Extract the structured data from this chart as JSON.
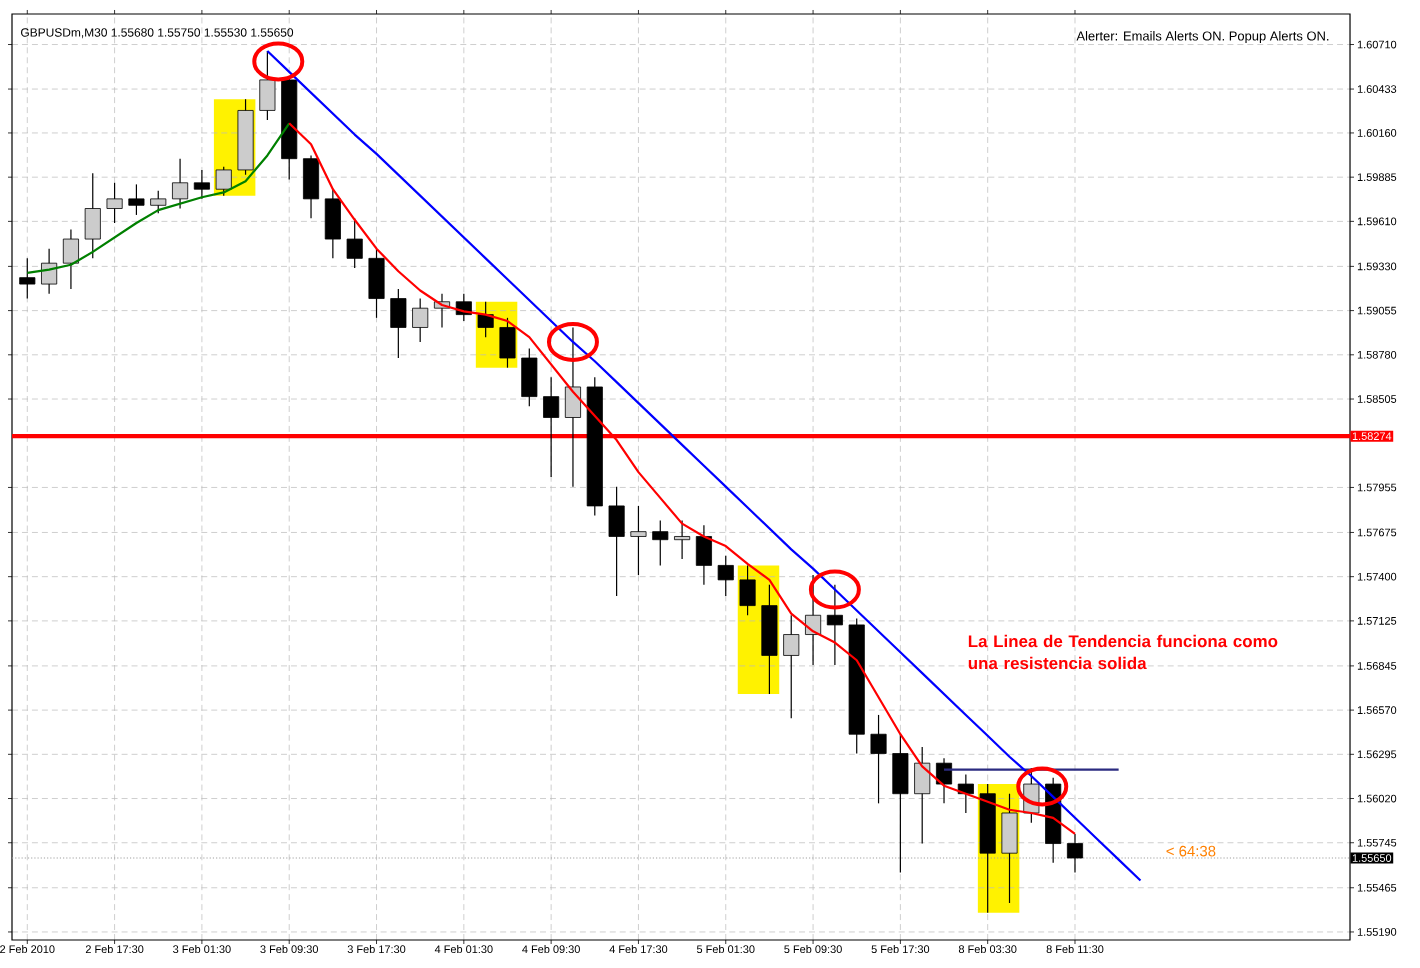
{
  "chart_data": {
    "type": "candlestick",
    "title": "GBPUSDm,M30  1.55680 1.55750 1.55530 1.55650",
    "annotations": [
      "Alerter:  Emails Alerts ON.  Popup Alerts ON.",
      "La Linea de Tendencia funciona como una resistencia solida",
      "< 64:38"
    ],
    "categories": [
      "2 Feb 2010",
      null,
      null,
      null,
      "2 Feb 17:30",
      null,
      null,
      null,
      "3 Feb 01:30",
      null,
      null,
      null,
      "3 Feb 09:30",
      null,
      null,
      null,
      "3 Feb 17:30",
      null,
      null,
      null,
      "4 Feb 01:30",
      null,
      null,
      null,
      "4 Feb 09:30",
      null,
      null,
      null,
      "4 Feb 17:30",
      null,
      null,
      null,
      "5 Feb 01:30",
      null,
      null,
      null,
      "5 Feb 09:30",
      null,
      null,
      null,
      "5 Feb 17:30",
      null,
      null,
      null,
      "8 Feb 03:30",
      null,
      null,
      null,
      "8 Feb 11:30",
      null,
      null,
      null,
      null,
      null,
      null,
      null,
      null,
      null,
      null,
      null,
      null
    ],
    "ohlc": [
      [
        1.5926,
        1.5938,
        1.5913,
        1.5922
      ],
      [
        1.5922,
        1.5944,
        1.5916,
        1.5935
      ],
      [
        1.5935,
        1.5956,
        1.5919,
        1.595
      ],
      [
        1.595,
        1.5991,
        1.5938,
        1.5969
      ],
      [
        1.5969,
        1.5985,
        1.596,
        1.5975
      ],
      [
        1.5975,
        1.5984,
        1.5965,
        1.5971
      ],
      [
        1.5971,
        1.598,
        1.5966,
        1.5975
      ],
      [
        1.5975,
        1.6,
        1.5969,
        1.5985
      ],
      [
        1.5985,
        1.5993,
        1.5975,
        1.5981
      ],
      [
        1.5981,
        1.5995,
        1.5977,
        1.5993
      ],
      [
        1.5993,
        1.6037,
        1.599,
        1.603
      ],
      [
        1.603,
        1.6067,
        1.6024,
        1.6049
      ],
      [
        1.6049,
        1.6051,
        1.5987,
        1.6
      ],
      [
        1.6,
        1.6002,
        1.5963,
        1.5975
      ],
      [
        1.5975,
        1.5981,
        1.5938,
        1.595
      ],
      [
        1.595,
        1.5963,
        1.5932,
        1.5938
      ],
      [
        1.5938,
        1.5944,
        1.5901,
        1.5913
      ],
      [
        1.5913,
        1.5919,
        1.5876,
        1.5895
      ],
      [
        1.5895,
        1.5913,
        1.5886,
        1.5907
      ],
      [
        1.5907,
        1.5916,
        1.5895,
        1.5911
      ],
      [
        1.5911,
        1.5916,
        1.5899,
        1.5903
      ],
      [
        1.5903,
        1.5911,
        1.5889,
        1.5895
      ],
      [
        1.5895,
        1.5901,
        1.587,
        1.5876
      ],
      [
        1.5876,
        1.5882,
        1.5846,
        1.5852
      ],
      [
        1.5852,
        1.5864,
        1.5802,
        1.5839
      ],
      [
        1.5839,
        1.5895,
        1.5796,
        1.5858
      ],
      [
        1.5858,
        1.5864,
        1.5778,
        1.5784
      ],
      [
        1.5784,
        1.5796,
        1.5728,
        1.5765
      ],
      [
        1.5765,
        1.5784,
        1.5741,
        1.5768
      ],
      [
        1.5768,
        1.5775,
        1.5747,
        1.5763
      ],
      [
        1.5763,
        1.5775,
        1.5751,
        1.5765
      ],
      [
        1.5765,
        1.5772,
        1.5735,
        1.5747
      ],
      [
        1.5747,
        1.5753,
        1.5728,
        1.5738
      ],
      [
        1.5738,
        1.5747,
        1.5716,
        1.5722
      ],
      [
        1.5722,
        1.5735,
        1.5667,
        1.5691
      ],
      [
        1.5691,
        1.5716,
        1.5652,
        1.5704
      ],
      [
        1.5704,
        1.5741,
        1.5685,
        1.5716
      ],
      [
        1.5716,
        1.5735,
        1.5685,
        1.571
      ],
      [
        1.571,
        1.5714,
        1.563,
        1.5642
      ],
      [
        1.5642,
        1.5654,
        1.5599,
        1.563
      ],
      [
        1.563,
        1.5642,
        1.5556,
        1.5605
      ],
      [
        1.5605,
        1.5634,
        1.5574,
        1.5624
      ],
      [
        1.5624,
        1.5627,
        1.5599,
        1.5611
      ],
      [
        1.5611,
        1.5617,
        1.5593,
        1.5605
      ],
      [
        1.5605,
        1.5611,
        1.5531,
        1.5568
      ],
      [
        1.5568,
        1.5605,
        1.5537,
        1.5593
      ],
      [
        1.5593,
        1.5621,
        1.5587,
        1.5611
      ],
      [
        1.5611,
        1.5615,
        1.5562,
        1.5574
      ],
      [
        1.5574,
        1.558,
        1.5556,
        1.5565
      ],
      null,
      null,
      null,
      null,
      null,
      null,
      null,
      null,
      null,
      null,
      null,
      null
    ],
    "series": [
      {
        "type": "line",
        "color": "#008000",
        "values": [
          1.5929,
          1.5931,
          1.5934,
          1.5942,
          1.5951,
          1.596,
          1.5968,
          1.5972,
          1.5976,
          1.5979,
          1.5986,
          1.6002,
          1.6022,
          null,
          null,
          null,
          null,
          null,
          null,
          null,
          null,
          null,
          null,
          null,
          null,
          null,
          null,
          null,
          null,
          null,
          null,
          null,
          null,
          null,
          null,
          null,
          null,
          null,
          null,
          null,
          null,
          null,
          null,
          null,
          null,
          null,
          null,
          null,
          null,
          null,
          null,
          null,
          null,
          null,
          null,
          null,
          null,
          null,
          null,
          null,
          null
        ]
      },
      {
        "type": "line",
        "color": "#ff0000",
        "values": [
          null,
          null,
          null,
          null,
          null,
          null,
          null,
          null,
          null,
          null,
          null,
          null,
          1.6022,
          1.6009,
          1.5981,
          1.5962,
          1.5944,
          1.593,
          1.5918,
          1.5909,
          1.5905,
          1.5903,
          1.5899,
          1.5889,
          1.5872,
          1.5855,
          1.584,
          1.5825,
          1.5805,
          1.5789,
          1.5773,
          1.5765,
          1.5759,
          1.5748,
          1.5738,
          1.5717,
          1.5706,
          1.5699,
          1.5688,
          1.5665,
          1.5642,
          1.5622,
          1.561,
          1.5605,
          1.56,
          1.5595,
          1.5593,
          1.559,
          1.558,
          null,
          null,
          null,
          null,
          null,
          null,
          null,
          null,
          null,
          null,
          null,
          null
        ]
      },
      {
        "type": "line",
        "color": "#2b2b80",
        "values": [
          null,
          null,
          null,
          null,
          null,
          null,
          null,
          null,
          null,
          null,
          null,
          null,
          null,
          null,
          null,
          null,
          null,
          null,
          null,
          null,
          null,
          null,
          null,
          null,
          null,
          null,
          null,
          null,
          null,
          null,
          null,
          null,
          null,
          null,
          null,
          null,
          null,
          null,
          null,
          null,
          null,
          null,
          1.562,
          1.562,
          1.562,
          1.562,
          1.562,
          1.562,
          1.562,
          1.562,
          1.562,
          null,
          null,
          null,
          null,
          null,
          null,
          null,
          null,
          null,
          null
        ]
      },
      {
        "type": "line",
        "color": "#0000ff",
        "values": [
          null,
          null,
          null,
          null,
          null,
          null,
          null,
          null,
          null,
          null,
          null,
          1.6067,
          1.6054,
          1.6041,
          1.6028,
          1.6015,
          1.6003,
          1.599,
          1.5977,
          1.5964,
          1.5951,
          1.5938,
          1.5925,
          1.5912,
          1.5899,
          1.5886,
          1.5874,
          1.5861,
          1.5848,
          1.5835,
          1.5822,
          1.5809,
          1.5796,
          1.5783,
          1.577,
          1.5757,
          1.5745,
          1.5732,
          1.5719,
          1.5706,
          1.5693,
          1.568,
          1.5667,
          1.5654,
          1.5641,
          1.5628,
          1.5616,
          1.5603,
          1.559,
          1.5577,
          1.5564,
          1.5551,
          null,
          null,
          null,
          null,
          null,
          null,
          null,
          null,
          null
        ]
      }
    ],
    "ylim": [
      1.5514,
      1.609
    ],
    "yticks": [
      {
        "value": 1.6071,
        "label": "1.60710"
      },
      {
        "value": 1.60433,
        "label": "1.60433"
      },
      {
        "value": 1.6016,
        "label": "1.60160"
      },
      {
        "value": 1.59885,
        "label": "1.59885"
      },
      {
        "value": 1.5961,
        "label": "1.59610"
      },
      {
        "value": 1.5933,
        "label": "1.59330"
      },
      {
        "value": 1.59055,
        "label": "1.59055"
      },
      {
        "value": 1.5878,
        "label": "1.58780"
      },
      {
        "value": 1.58505,
        "label": "1.58505"
      },
      {
        "value": 1.57955,
        "label": "1.57955"
      },
      {
        "value": 1.57675,
        "label": "1.57675"
      },
      {
        "value": 1.574,
        "label": "1.57400"
      },
      {
        "value": 1.57125,
        "label": "1.57125"
      },
      {
        "value": 1.56845,
        "label": "1.56845"
      },
      {
        "value": 1.5657,
        "label": "1.56570"
      },
      {
        "value": 1.56295,
        "label": "1.56295"
      },
      {
        "value": 1.5602,
        "label": "1.56020"
      },
      {
        "value": 1.55745,
        "label": "1.55745"
      },
      {
        "value": 1.55465,
        "label": "1.55465"
      },
      {
        "value": 1.5519,
        "label": "1.55190"
      }
    ],
    "ref_lines": [
      {
        "axis": "y",
        "value": 1.58274,
        "label": "1.58274",
        "color": "#ff0000",
        "line_style": "solid"
      },
      {
        "axis": "y",
        "value": 1.5565,
        "label": "1.55650",
        "color": "#a0a0a0",
        "line_style": "dotted"
      }
    ],
    "grid": true,
    "marker": "none"
  }
}
